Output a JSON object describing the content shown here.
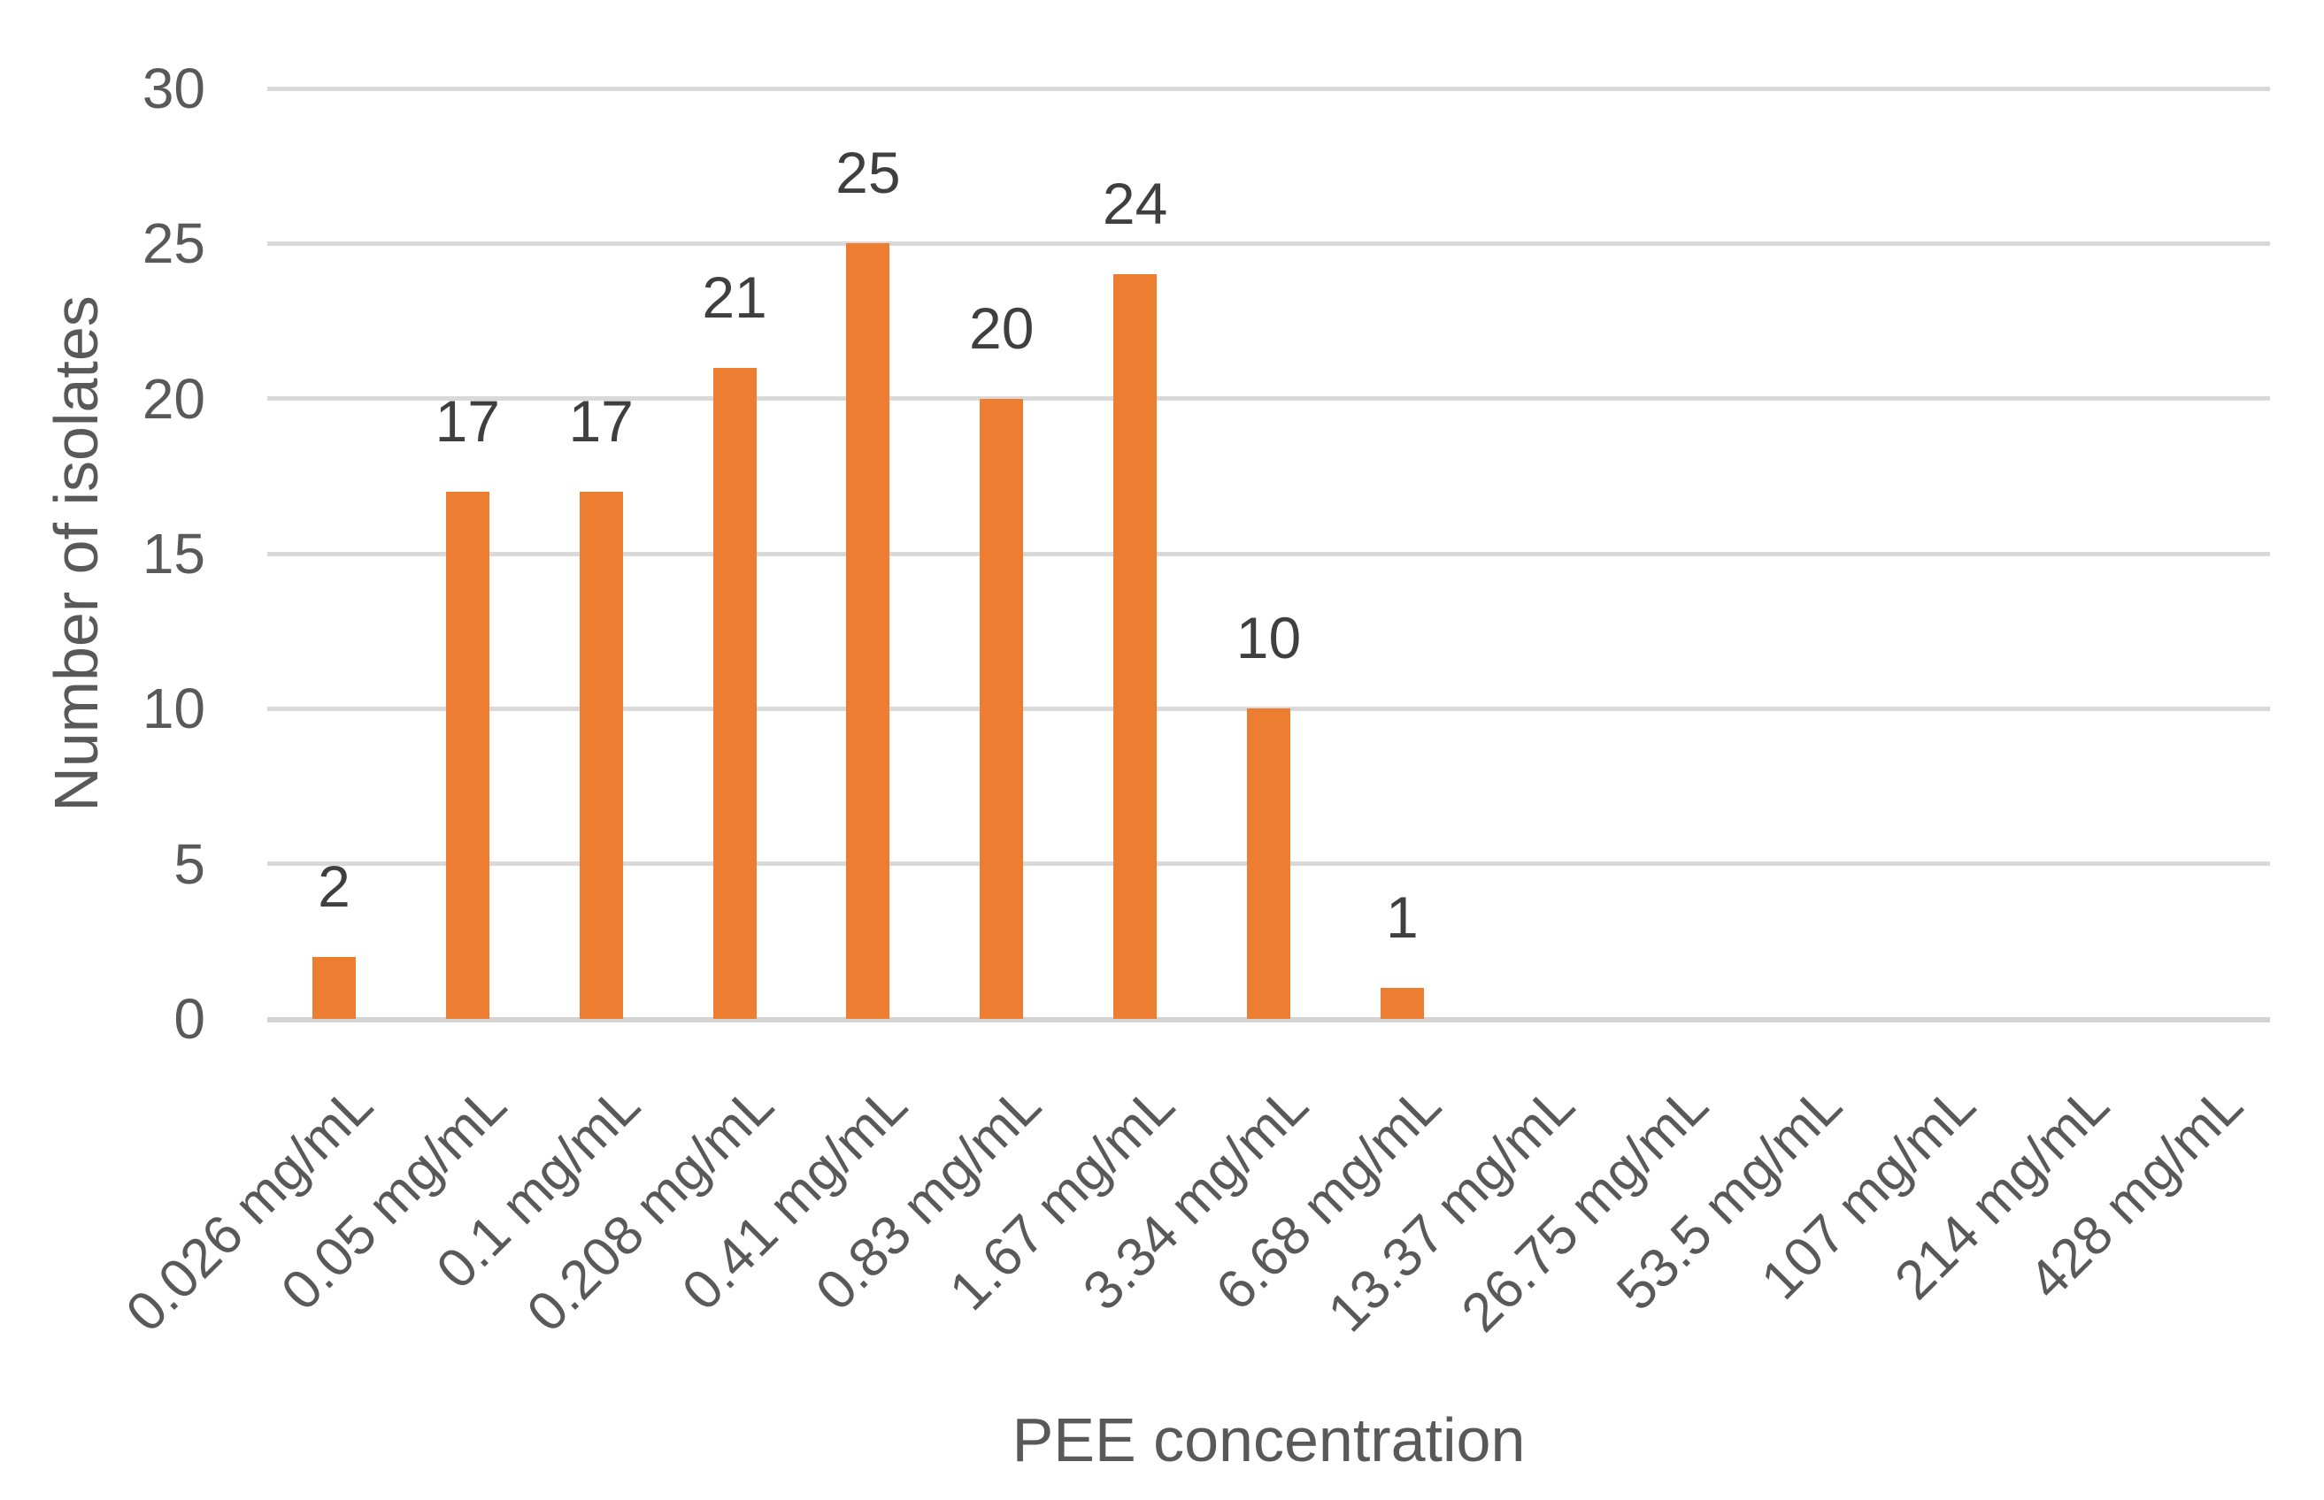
{
  "chart_data": {
    "type": "bar",
    "title": "",
    "xlabel": "PEE concentration",
    "ylabel": "Number of isolates",
    "categories": [
      "0.026 mg/mL",
      "0.05 mg/mL",
      "0.1 mg/mL",
      "0.208 mg/mL",
      "0.41 mg/mL",
      "0.83 mg/mL",
      "1.67 mg/mL",
      "3.34 mg/mL",
      "6.68 mg/mL",
      "13.37 mg/mL",
      "26.75 mg/mL",
      "53.5 mg/mL",
      "107 mg/mL",
      "214 mg/mL",
      "428 mg/mL"
    ],
    "values": [
      2,
      17,
      17,
      21,
      25,
      20,
      24,
      10,
      1,
      0,
      0,
      0,
      0,
      0,
      0
    ],
    "yticks": [
      30,
      25,
      20,
      15,
      10,
      5,
      0
    ],
    "ylim": [
      0,
      30
    ],
    "grid": "horizontal",
    "legend": "none",
    "data_labels": "outside-end, shown only for non-zero bars",
    "bar_color": "#ED7D31",
    "gridline_color": "#D9D9D9",
    "axis_line_color": "#D3D3D3",
    "tick_label_color": "#595959",
    "data_label_color": "#3F3F3F",
    "axis_title_color": "#595959"
  }
}
